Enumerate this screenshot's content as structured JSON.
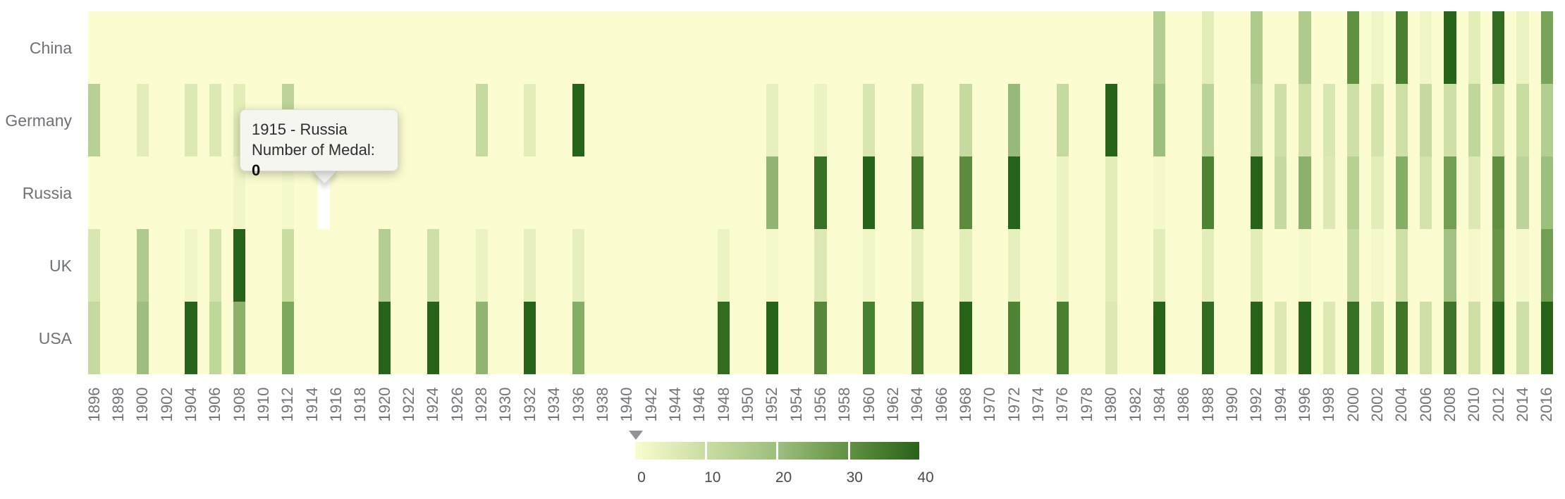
{
  "chart_data": {
    "type": "heatmap",
    "title": "",
    "value_name": "Number of Medal",
    "y_axis": {
      "categories": [
        "China",
        "Germany",
        "Russia",
        "UK",
        "USA"
      ]
    },
    "x_axis": {
      "year_min": 1896,
      "year_max": 2016,
      "label_interval": 2,
      "tick_labels": [
        1896,
        1898,
        1900,
        1902,
        1904,
        1906,
        1908,
        1910,
        1912,
        1914,
        1916,
        1918,
        1920,
        1922,
        1924,
        1926,
        1928,
        1930,
        1932,
        1934,
        1936,
        1938,
        1940,
        1942,
        1944,
        1946,
        1948,
        1950,
        1952,
        1954,
        1956,
        1958,
        1960,
        1962,
        1964,
        1966,
        1968,
        1970,
        1972,
        1974,
        1976,
        1978,
        1980,
        1982,
        1984,
        1986,
        1988,
        1990,
        1992,
        1994,
        1996,
        1998,
        2000,
        2002,
        2004,
        2006,
        2008,
        2010,
        2012,
        2014,
        2016
      ]
    },
    "series": {
      "China": {
        "1984": 15,
        "1988": 5,
        "1992": 16,
        "1996": 16,
        "2000": 30,
        "2002": 2,
        "2004": 34,
        "2006": 2,
        "2008": 48,
        "2010": 5,
        "2012": 38,
        "2014": 3,
        "2016": 26
      },
      "Germany": {
        "1896": 14,
        "1900": 5,
        "1904": 6,
        "1906": 6,
        "1908": 5,
        "1912": 13,
        "1928": 11,
        "1932": 5,
        "1936": 40,
        "1952": 4,
        "1956": 3,
        "1960": 7,
        "1964": 9,
        "1968": 11,
        "1972": 21,
        "1976": 11,
        "1980": 44,
        "1984": 20,
        "1988": 13,
        "1992": 13,
        "1994": 9,
        "1996": 9,
        "1998": 7,
        "2000": 9,
        "2002": 8,
        "2004": 9,
        "2006": 11,
        "2008": 9,
        "2010": 12,
        "2012": 10,
        "2014": 10,
        "2016": 15
      },
      "Russia": {
        "1908": 2,
        "1912": 1,
        "1952": 22,
        "1956": 37,
        "1960": 43,
        "1964": 35,
        "1968": 31,
        "1972": 45,
        "1976": 3,
        "1980": 5,
        "1984": 1,
        "1988": 33,
        "1992": 45,
        "1994": 11,
        "1996": 23,
        "1998": 6,
        "2000": 14,
        "2002": 5,
        "2004": 24,
        "2006": 8,
        "2008": 27,
        "2010": 6,
        "2012": 30,
        "2014": 13,
        "2016": 20
      },
      "UK": {
        "1896": 7,
        "1900": 16,
        "1904": 2,
        "1906": 8,
        "1908": 56,
        "1912": 10,
        "1920": 15,
        "1924": 9,
        "1928": 3,
        "1932": 4,
        "1936": 4,
        "1948": 3,
        "1952": 1,
        "1956": 6,
        "1960": 2,
        "1964": 4,
        "1968": 5,
        "1972": 4,
        "1976": 3,
        "1980": 5,
        "1984": 5,
        "1988": 5,
        "1992": 5,
        "1996": 1,
        "2000": 11,
        "2002": 1,
        "2004": 9,
        "2008": 19,
        "2010": 1,
        "2012": 29,
        "2014": 1,
        "2016": 27
      },
      "USA": {
        "1896": 11,
        "1900": 20,
        "1904": 78,
        "1906": 12,
        "1908": 23,
        "1912": 25,
        "1920": 41,
        "1924": 45,
        "1928": 22,
        "1932": 41,
        "1936": 24,
        "1948": 38,
        "1952": 40,
        "1956": 32,
        "1960": 34,
        "1964": 36,
        "1968": 45,
        "1972": 33,
        "1976": 34,
        "1980": 6,
        "1984": 83,
        "1988": 38,
        "1992": 42,
        "1994": 6,
        "1996": 44,
        "1998": 6,
        "2000": 37,
        "2002": 10,
        "2004": 36,
        "2006": 9,
        "2008": 36,
        "2010": 9,
        "2012": 46,
        "2014": 9,
        "2016": 46
      }
    },
    "visual_map": {
      "min": 0,
      "max": 40,
      "tick_labels": [
        "0",
        "10",
        "20",
        "30",
        "40"
      ],
      "handle_value": 0,
      "color_stops": [
        [
          0,
          "#fafcce"
        ],
        [
          10,
          "#c9dda1"
        ],
        [
          20,
          "#9dbf7e"
        ],
        [
          30,
          "#609140"
        ],
        [
          40,
          "#276319"
        ]
      ]
    },
    "background_color": "#fbfcd0",
    "highlight": {
      "country": "Russia",
      "year": 1915
    },
    "tooltip": {
      "line1": "1915 - Russia",
      "value_label": "Number of Medal: ",
      "value": "0"
    }
  },
  "colors": {
    "row_label": "#6e7277",
    "year_label": "#71757b",
    "legend_label": "#4b4b4b",
    "top_line": "#e3e5ea",
    "bottom_line": "#d9dfe8",
    "tooltip_bg": "#f6f6f1",
    "tooltip_border": "#dcdcd4",
    "highlight_cell": "#ffffff",
    "legend_handle": "#909296"
  }
}
